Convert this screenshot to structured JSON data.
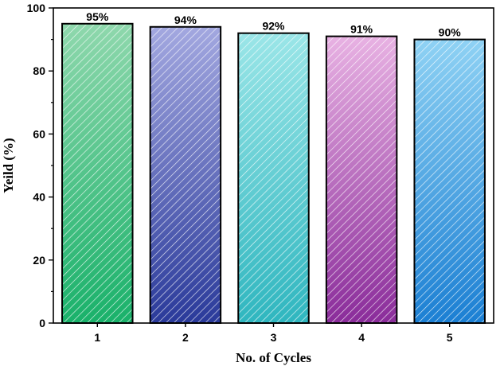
{
  "chart_data": {
    "type": "bar",
    "categories": [
      "1",
      "2",
      "3",
      "4",
      "5"
    ],
    "values": [
      95,
      94,
      92,
      91,
      90
    ],
    "data_labels": [
      "95%",
      "94%",
      "92%",
      "91%",
      "90%"
    ],
    "xlabel": "No. of Cycles",
    "ylabel": "Yeild (%)",
    "ylim": [
      0,
      100
    ],
    "yticks": [
      0,
      20,
      40,
      60,
      80,
      100
    ],
    "grid": false,
    "legend": "none",
    "bar_fill": "hatched",
    "bar_colors": [
      [
        "#8fd8ad",
        "#19b16a"
      ],
      [
        "#a3a8e0",
        "#2a3a9a"
      ],
      [
        "#9be6e8",
        "#2fb6bf"
      ],
      [
        "#e8b2e3",
        "#8a2c9a"
      ],
      [
        "#8fd2f4",
        "#1b7fd3"
      ]
    ]
  }
}
